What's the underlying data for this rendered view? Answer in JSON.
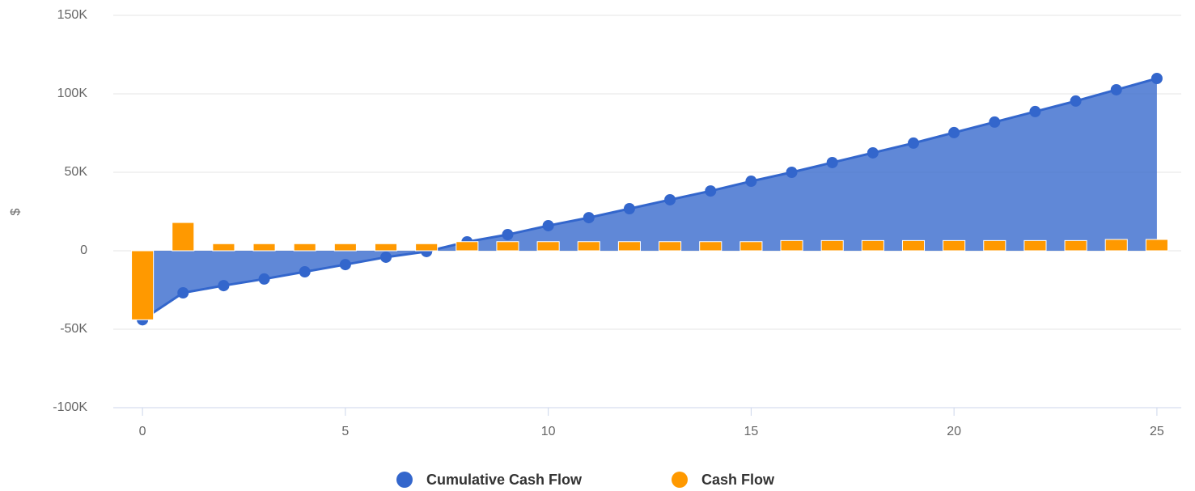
{
  "chart_data": {
    "type": "combo",
    "y_label": "$",
    "x": [
      0,
      1,
      2,
      3,
      4,
      5,
      6,
      7,
      8,
      9,
      10,
      11,
      12,
      13,
      14,
      15,
      16,
      17,
      18,
      19,
      20,
      21,
      22,
      23,
      24,
      25
    ],
    "series": [
      {
        "name": "Cumulative Cash Flow",
        "type": "area",
        "color": "#3366cc",
        "values": [
          -44000,
          -26800,
          -22200,
          -18000,
          -13400,
          -8800,
          -4100,
          -500,
          5700,
          10300,
          16000,
          21100,
          26800,
          32500,
          38100,
          44300,
          50000,
          56200,
          62400,
          68600,
          75300,
          82000,
          88700,
          95400,
          102600,
          109800
        ]
      },
      {
        "name": "Cash Flow",
        "type": "bar",
        "color": "#ff9900",
        "values": [
          -44000,
          18000,
          4500,
          4500,
          4500,
          4500,
          4500,
          4500,
          5800,
          5800,
          5800,
          5800,
          5800,
          5800,
          5800,
          5800,
          6500,
          6500,
          6500,
          6500,
          6500,
          6500,
          6500,
          6500,
          7200,
          7200
        ]
      }
    ],
    "xlim": [
      -0.72,
      25.6
    ],
    "xticks": [
      0,
      5,
      10,
      15,
      20,
      25
    ],
    "ylim": [
      -100000,
      150000
    ],
    "yticks": [
      {
        "value": -100000,
        "label": "-100K"
      },
      {
        "value": -50000,
        "label": "-50K"
      },
      0,
      {
        "value": 50000,
        "label": "50K"
      },
      {
        "value": 100000,
        "label": "100K"
      },
      {
        "value": 150000,
        "label": "150K"
      }
    ],
    "grid": true,
    "legend": "bottom"
  }
}
